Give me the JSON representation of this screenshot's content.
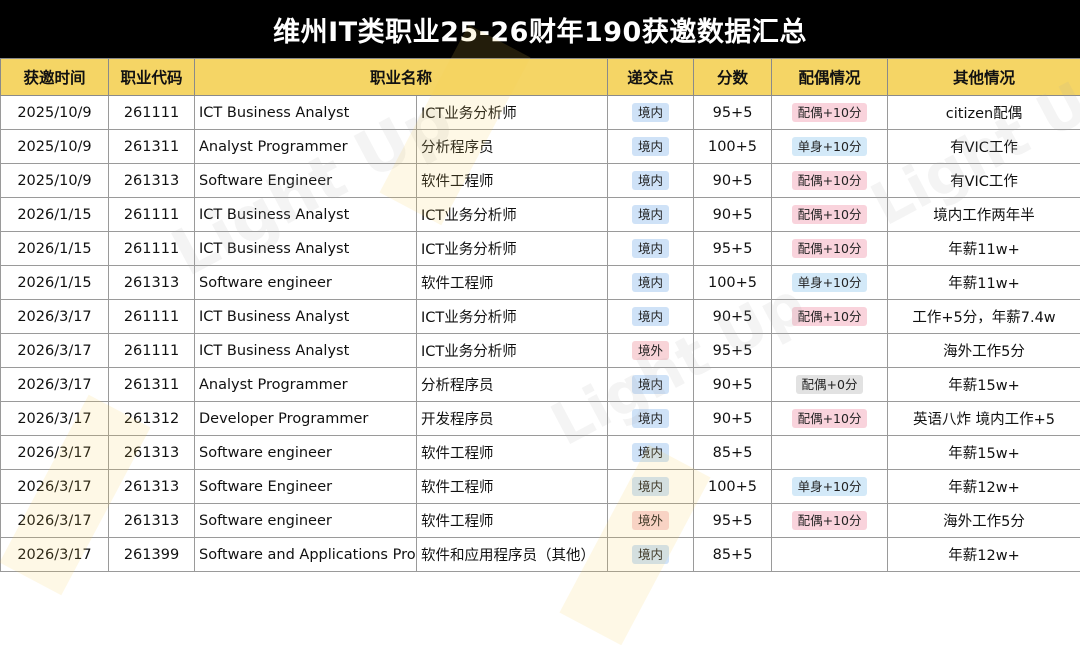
{
  "title": "维州IT类职业25-26财年190获邀数据汇总",
  "headers": [
    "获邀时间",
    "职业代码",
    "职业名称",
    "递交点",
    "分数",
    "配偶情况",
    "其他情况"
  ],
  "rows": [
    {
      "date": "2025/10/9",
      "code": "261111",
      "name_en": "ICT Business Analyst",
      "name_cn": "ICT业务分析师",
      "loc": "境内",
      "score": "95+5",
      "spouse": "配偶+10分",
      "spouse_type": "sp",
      "other": "citizen配偶"
    },
    {
      "date": "2025/10/9",
      "code": "261311",
      "name_en": "Analyst Programmer",
      "name_cn": "分析程序员",
      "loc": "境内",
      "score": "100+5",
      "spouse": "单身+10分",
      "spouse_type": "single",
      "other": "有VIC工作"
    },
    {
      "date": "2025/10/9",
      "code": "261313",
      "name_en": "Software Engineer",
      "name_cn": "软件工程师",
      "loc": "境内",
      "score": "90+5",
      "spouse": "配偶+10分",
      "spouse_type": "sp",
      "other": "有VIC工作"
    },
    {
      "date": "2026/1/15",
      "code": "261111",
      "name_en": "ICT Business Analyst",
      "name_cn": "ICT业务分析师",
      "loc": "境内",
      "score": "90+5",
      "spouse": "配偶+10分",
      "spouse_type": "sp",
      "other": "境内工作两年半"
    },
    {
      "date": "2026/1/15",
      "code": "261111",
      "name_en": "ICT Business Analyst",
      "name_cn": "ICT业务分析师",
      "loc": "境内",
      "score": "95+5",
      "spouse": "配偶+10分",
      "spouse_type": "sp",
      "other": "年薪11w+"
    },
    {
      "date": "2026/1/15",
      "code": "261313",
      "name_en": "Software engineer",
      "name_cn": "软件工程师",
      "loc": "境内",
      "score": "100+5",
      "spouse": "单身+10分",
      "spouse_type": "single",
      "other": "年薪11w+"
    },
    {
      "date": "2026/3/17",
      "code": "261111",
      "name_en": "ICT Business Analyst",
      "name_cn": "ICT业务分析师",
      "loc": "境内",
      "score": "90+5",
      "spouse": "配偶+10分",
      "spouse_type": "sp",
      "other": "工作+5分，年薪7.4w"
    },
    {
      "date": "2026/3/17",
      "code": "261111",
      "name_en": "ICT Business Analyst",
      "name_cn": "ICT业务分析师",
      "loc": "境外",
      "score": "95+5",
      "spouse": "",
      "spouse_type": "",
      "other": "海外工作5分"
    },
    {
      "date": "2026/3/17",
      "code": "261311",
      "name_en": "Analyst Programmer",
      "name_cn": "分析程序员",
      "loc": "境内",
      "score": "90+5",
      "spouse": "配偶+0分",
      "spouse_type": "zero",
      "other": "年薪15w+"
    },
    {
      "date": "2026/3/17",
      "code": "261312",
      "name_en": "Developer Programmer",
      "name_cn": "开发程序员",
      "loc": "境内",
      "score": "90+5",
      "spouse": "配偶+10分",
      "spouse_type": "sp",
      "other": "英语八炸 境内工作+5"
    },
    {
      "date": "2026/3/17",
      "code": "261313",
      "name_en": "Software engineer",
      "name_cn": "软件工程师",
      "loc": "境内",
      "score": "85+5",
      "spouse": "",
      "spouse_type": "",
      "other": "年薪15w+"
    },
    {
      "date": "2026/3/17",
      "code": "261313",
      "name_en": "Software Engineer",
      "name_cn": "软件工程师",
      "loc": "境内",
      "score": "100+5",
      "spouse": "单身+10分",
      "spouse_type": "single",
      "other": "年薪12w+"
    },
    {
      "date": "2026/3/17",
      "code": "261313",
      "name_en": "Software engineer",
      "name_cn": "软件工程师",
      "loc": "境外",
      "score": "95+5",
      "spouse": "配偶+10分",
      "spouse_type": "sp",
      "other": "海外工作5分"
    },
    {
      "date": "2026/3/17",
      "code": "261399",
      "name_en": "Software and Applications Progr",
      "name_cn": "软件和应用程序员（其他）",
      "loc": "境内",
      "score": "85+5",
      "spouse": "",
      "spouse_type": "",
      "other": "年薪12w+"
    }
  ],
  "watermark_text": "Light Up",
  "colors": {
    "header_bg": "#f5d565",
    "title_bg": "#000000",
    "badge_in": "#cfe2f7",
    "badge_out": "#f8d4d8"
  }
}
